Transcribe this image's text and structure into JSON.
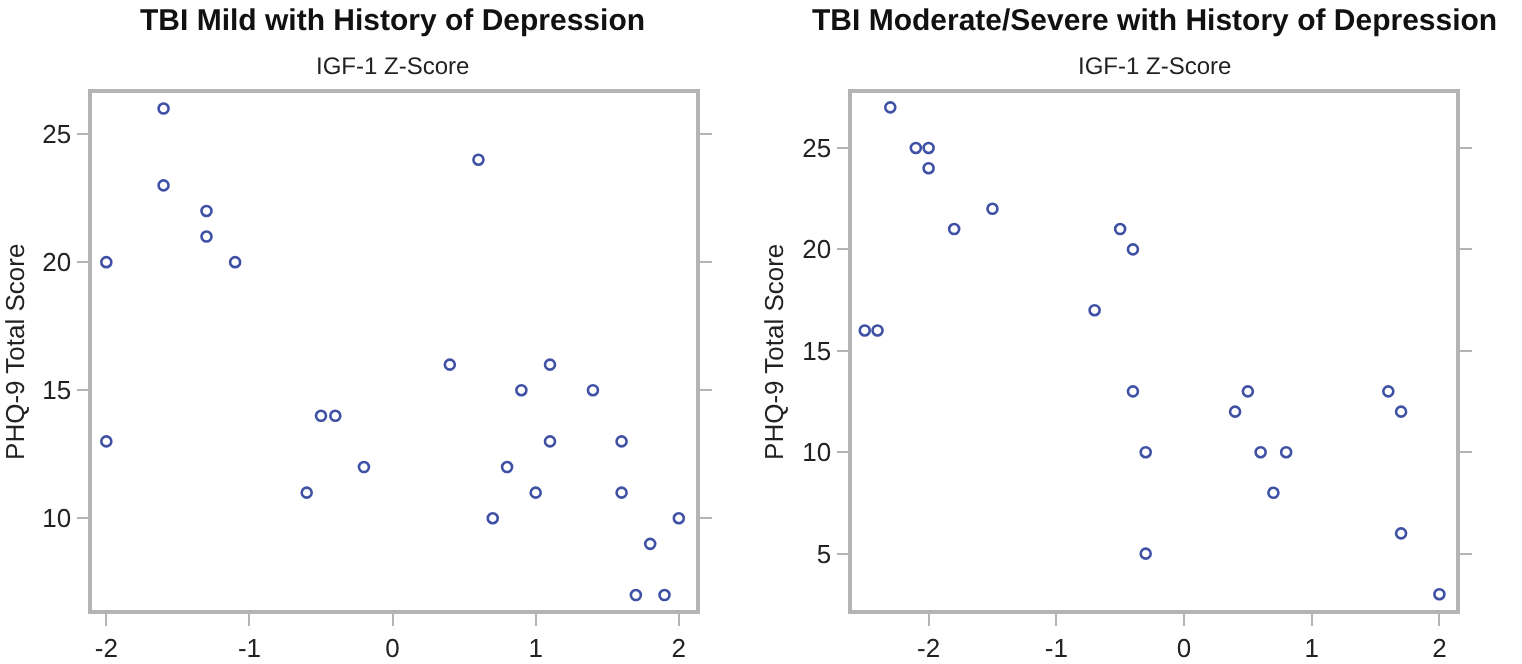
{
  "chart_data": [
    {
      "type": "scatter",
      "title": "TBI Mild with History of Depression",
      "xlabel": "IGF-1 Z-Score",
      "ylabel": "PHQ-9 Total Score",
      "marker": "circle",
      "xlim": [
        -2.1,
        2.12
      ],
      "xticks": [
        -2,
        -1,
        0,
        1,
        2
      ],
      "ylim": [
        6.4,
        26.6
      ],
      "yticks": [
        10,
        15,
        20,
        25
      ],
      "series": [
        {
          "color": "#3f51a5",
          "x": [
            -2,
            -2,
            -1.6,
            -1.6,
            -1.3,
            -1.3,
            -1.1,
            -0.6,
            -0.5,
            -0.4,
            -0.2,
            0.4,
            0.6,
            0.7,
            0.8,
            0.9,
            1.0,
            1.1,
            1.1,
            1.4,
            1.6,
            1.6,
            1.7,
            1.8,
            1.9,
            2.0
          ],
          "values": [
            20,
            13,
            26,
            23,
            22,
            21,
            20,
            11,
            14,
            14,
            12,
            16,
            24,
            10,
            12,
            15,
            11,
            16,
            13,
            15,
            13,
            11,
            7,
            9,
            7,
            10
          ]
        }
      ]
    },
    {
      "type": "scatter",
      "title": "TBI Moderate/Severe with History of Depression",
      "xlabel": "IGF-1 Z-Score",
      "ylabel": "PHQ-9 Total Score",
      "marker": "circle",
      "xlim": [
        -2.6,
        2.13
      ],
      "xticks": [
        -2,
        -1,
        0,
        1,
        2
      ],
      "ylim": [
        2.2,
        27.7
      ],
      "yticks": [
        5,
        10,
        15,
        20,
        25
      ],
      "series": [
        {
          "color": "#3f51a5",
          "x": [
            -2.5,
            -2.4,
            -2.3,
            -2.1,
            -2.0,
            -2.0,
            -1.8,
            -1.5,
            -0.7,
            -0.5,
            -0.4,
            -0.4,
            -0.3,
            -0.3,
            0.4,
            0.5,
            0.6,
            0.7,
            0.8,
            1.6,
            1.7,
            1.7,
            2.0
          ],
          "values": [
            16,
            16,
            27,
            25,
            25,
            24,
            21,
            22,
            17,
            21,
            20,
            13,
            10,
            5,
            12,
            13,
            10,
            8,
            10,
            13,
            12,
            6,
            3
          ]
        }
      ]
    }
  ]
}
